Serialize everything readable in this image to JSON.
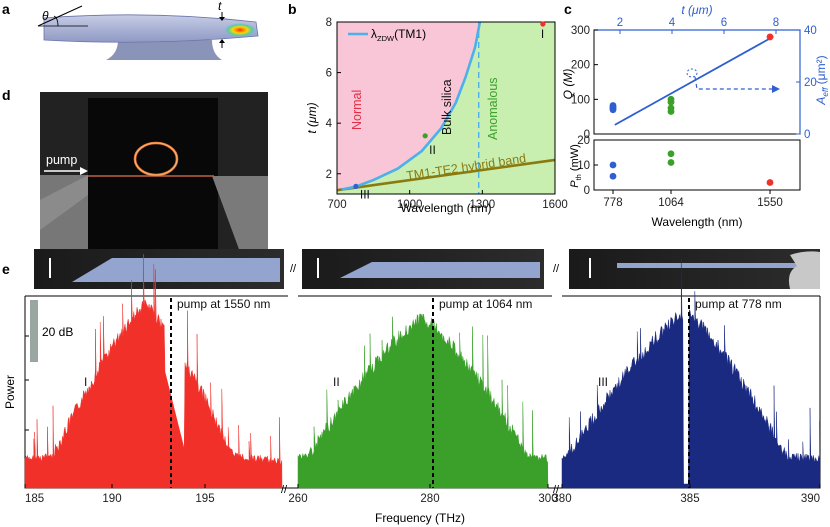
{
  "panel_labels": {
    "a": "a",
    "b": "b",
    "c": "c",
    "d": "d",
    "e": "e"
  },
  "panel_a": {
    "theta": "θ",
    "t": "t"
  },
  "panel_d": {
    "pump_label": "pump"
  },
  "colors": {
    "red": "#f2302a",
    "green": "#3aa02a",
    "navy": "#1a2a80",
    "blue": "#2f5fd0",
    "pink": "#f9c6d8",
    "lightgreen": "#c8efb0",
    "olive": "#8a7a10",
    "cyan": "#4db0e8"
  },
  "chart_data": [
    {
      "id": "b",
      "type": "line",
      "xlabel": "Wavelength (nm)",
      "ylabel": "t (μm)",
      "xlim": [
        700,
        1600
      ],
      "ylim": [
        1.2,
        8
      ],
      "xticks": [
        "700",
        "1000",
        "1300",
        "1600"
      ],
      "yticks": [
        "2",
        "4",
        "6",
        "8"
      ],
      "legend": "λZDW(TM1)",
      "legend_main": "λ",
      "legend_sub": "ZDW",
      "legend_tail": "(TM1)",
      "region_normal": "Normal",
      "region_anomalous": "Anomalous",
      "bulk_silica_label": "Bulk silica",
      "bulk_silica_wavelength": 1285,
      "hybrid_band_label": "TM1-TE2 hybrid band",
      "zdw_curve": {
        "x": [
          780,
          850,
          950,
          1050,
          1130,
          1190,
          1230,
          1270,
          1290
        ],
        "y": [
          1.5,
          1.75,
          2.2,
          2.9,
          3.8,
          4.8,
          5.8,
          7.0,
          8.0
        ]
      },
      "hybrid_band": {
        "x": [
          700,
          1600
        ],
        "y": [
          1.35,
          2.55
        ]
      },
      "points": [
        {
          "label": "I",
          "x": 1550,
          "y": 8.0,
          "color": "#f2302a"
        },
        {
          "label": "II",
          "x": 1064,
          "y": 3.5,
          "color": "#3aa02a"
        },
        {
          "label": "III",
          "x": 778,
          "y": 1.5,
          "color": "#2f5fd0"
        }
      ]
    },
    {
      "id": "c",
      "type": "scatter",
      "xlabel": "Wavelength (nm)",
      "top_xlabel": "t (μm)",
      "top_xticks": [
        "2",
        "4",
        "6",
        "8"
      ],
      "ylabel_q": "Q (M)",
      "ylabel_aeff": "Aeff (μm²)",
      "aeff_main": "A",
      "aeff_sub": "eff",
      "aeff_tail": " (μm²)",
      "ylabel_pth": "Pth (mW)",
      "pth_main": "P",
      "pth_sub": "th",
      "pth_tail": " (mW)",
      "xticks": [
        "778",
        "1064",
        "1550"
      ],
      "q_yticks": [
        "0",
        "100",
        "200",
        "300"
      ],
      "aeff_yticks": [
        "0",
        "20",
        "40"
      ],
      "pth_yticks": [
        "0",
        "10",
        "20"
      ],
      "q_ylim": [
        0,
        300
      ],
      "aeff_ylim": [
        0,
        40
      ],
      "pth_ylim": [
        0,
        20
      ],
      "aeff_line": {
        "t": [
          1.8,
          7.9
        ],
        "value": [
          3.5,
          37.5
        ]
      },
      "q_points": [
        {
          "x": "778",
          "values": [
            70,
            74,
            78,
            82
          ],
          "color": "#2f5fd0"
        },
        {
          "x": "1064",
          "values": [
            65,
            75,
            92,
            100
          ],
          "color": "#3aa02a"
        },
        {
          "x": "1550",
          "values": [
            280
          ],
          "color": "#f2302a"
        }
      ],
      "pth_points": [
        {
          "x": "778",
          "values": [
            5.5,
            10
          ],
          "color": "#2f5fd0"
        },
        {
          "x": "1064",
          "values": [
            11,
            14.5
          ],
          "color": "#3aa02a"
        },
        {
          "x": "1550",
          "values": [
            3
          ],
          "color": "#f2302a"
        }
      ]
    },
    {
      "id": "e",
      "type": "area",
      "xlabel": "Frequency (THz)",
      "ylabel": "Power",
      "scale_bar": "20 dB",
      "break_marks": "//",
      "segments": [
        {
          "label": "I",
          "xticks": [
            "185",
            "190",
            "195"
          ],
          "xlim": [
            185,
            200
          ],
          "pump_freq": 193.4,
          "pump_label": "pump at 1550 nm",
          "peak_freq": 192,
          "color": "#f2302a"
        },
        {
          "label": "II",
          "xticks": [
            "260",
            "280",
            "300"
          ],
          "xlim": [
            260,
            300
          ],
          "pump_freq": 282,
          "pump_label": "pump at 1064 nm",
          "peak_freq": 280,
          "color": "#3aa02a"
        },
        {
          "label": "III",
          "xticks": [
            "380",
            "385",
            "390"
          ],
          "xlim": [
            380,
            390
          ],
          "pump_freq": 385,
          "pump_label": "pump at 778 nm",
          "peak_freq": 385,
          "color": "#1a2a80"
        }
      ]
    }
  ]
}
